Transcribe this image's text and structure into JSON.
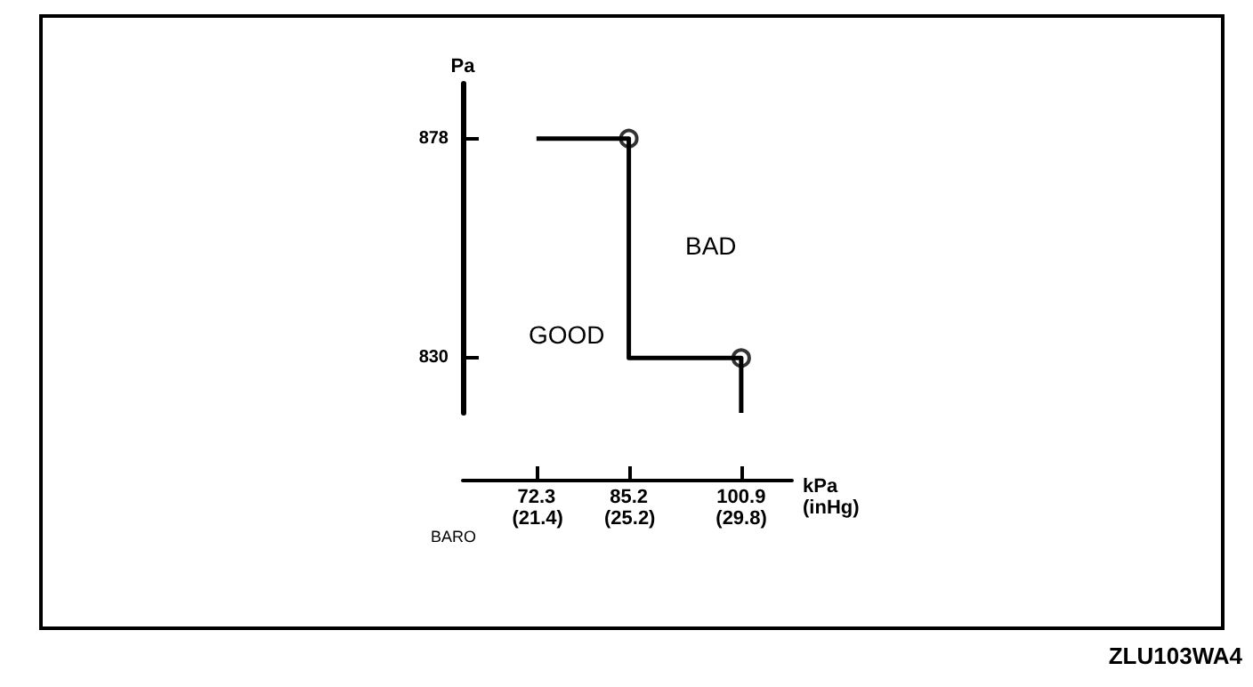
{
  "chart_data": {
    "type": "line",
    "ylabel": "Pa",
    "xlabel": "kPa",
    "x2label": "(inHg)",
    "annotations": [
      "BAD",
      "GOOD",
      "BARO",
      "ZLU103WA4"
    ],
    "xlim": [
      62,
      108
    ],
    "xticks": [
      72.3,
      85.2,
      100.9
    ],
    "x2lim": [
      18.31,
      31.89
    ],
    "x2ticks": [
      {
        "value": 21.4,
        "label": "(21.4)"
      },
      {
        "value": 25.2,
        "label": "(25.2)"
      },
      {
        "value": 29.8,
        "label": "(29.8)"
      }
    ],
    "ylim": [
      818,
      890
    ],
    "yticks": [
      830,
      878
    ],
    "grid": false,
    "marker": "none",
    "line_style": "solid",
    "series": [
      {
        "color": "#000000",
        "x": [
          72.3,
          85.2,
          85.2,
          100.9,
          100.9
        ],
        "values": [
          878,
          878,
          830,
          830,
          818
        ]
      },
      {
        "type": "scatter",
        "marker": "circle",
        "color": "#000000",
        "x": [
          85.2,
          100.9
        ],
        "values": [
          878,
          830
        ]
      }
    ]
  }
}
